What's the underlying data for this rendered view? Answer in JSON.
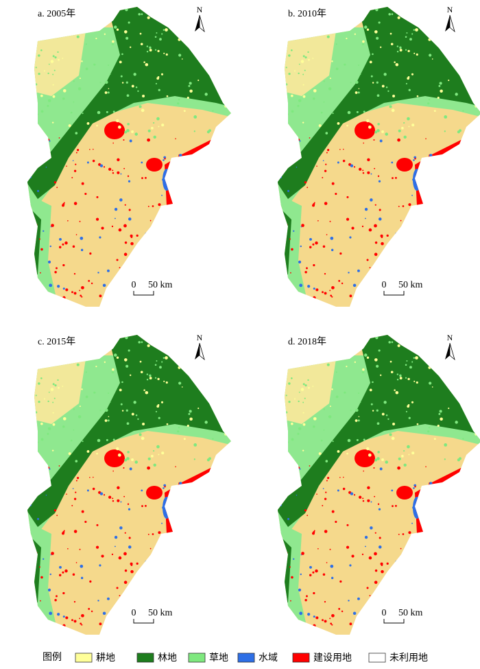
{
  "panels": [
    {
      "label": "a. 2005年",
      "north": "N",
      "scale_zero": "0",
      "scale_unit": "50 km"
    },
    {
      "label": "b. 2010年",
      "north": "N",
      "scale_zero": "0",
      "scale_unit": "50 km"
    },
    {
      "label": "c. 2015年",
      "north": "N",
      "scale_zero": "0",
      "scale_unit": "50 km"
    },
    {
      "label": "d. 2018年",
      "north": "N",
      "scale_zero": "0",
      "scale_unit": "50 km"
    }
  ],
  "legend": {
    "title": "图例",
    "items": [
      {
        "label": "耕地",
        "color": "#ffff99"
      },
      {
        "label": "林地",
        "color": "#1e7d1e"
      },
      {
        "label": "草地",
        "color": "#7fe87f"
      },
      {
        "label": "水域",
        "color": "#2e6fe6"
      },
      {
        "label": "建设用地",
        "color": "#ff0000"
      },
      {
        "label": "未利用地",
        "color": "#ffffff"
      }
    ]
  }
}
